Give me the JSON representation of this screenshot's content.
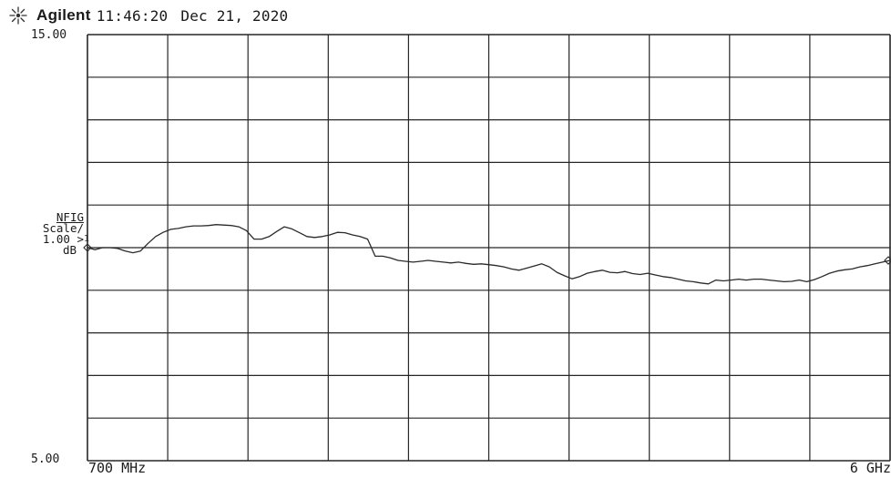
{
  "header": {
    "logo_icon": "sunburst-logo-icon",
    "brand": "Agilent",
    "time": "11:46:20",
    "date": "Dec 21, 2020"
  },
  "axis": {
    "y_top_label": "15.00",
    "y_bottom_label": "5.00",
    "trace_name": "NFIG",
    "scale_line1": "Scale/",
    "scale_value": "1.00",
    "scale_unit": "dB",
    "reference_marker": ">",
    "marker_label": "1",
    "x_start_label": "700 MHz",
    "x_end_label": "6 GHz"
  },
  "chart_data": {
    "type": "line",
    "title": "",
    "xlabel": "",
    "ylabel": "NFIG",
    "x_unit": "MHz",
    "y_unit": "dB",
    "xlim": [
      700,
      6000
    ],
    "ylim": [
      5,
      15
    ],
    "grid": true,
    "grid_divisions": {
      "x": 10,
      "y": 10
    },
    "color": "#2a2a2a",
    "series": [
      {
        "values": [
          [
            700,
            10.0
          ],
          [
            750,
            9.95
          ],
          [
            800,
            10.0
          ],
          [
            850,
            10.0
          ],
          [
            900,
            9.98
          ],
          [
            950,
            9.92
          ],
          [
            1000,
            9.88
          ],
          [
            1050,
            9.92
          ],
          [
            1100,
            10.1
          ],
          [
            1150,
            10.26
          ],
          [
            1200,
            10.36
          ],
          [
            1250,
            10.43
          ],
          [
            1300,
            10.45
          ],
          [
            1350,
            10.49
          ],
          [
            1400,
            10.51
          ],
          [
            1450,
            10.51
          ],
          [
            1500,
            10.52
          ],
          [
            1550,
            10.54
          ],
          [
            1600,
            10.53
          ],
          [
            1650,
            10.52
          ],
          [
            1700,
            10.49
          ],
          [
            1750,
            10.4
          ],
          [
            1800,
            10.2
          ],
          [
            1850,
            10.2
          ],
          [
            1900,
            10.26
          ],
          [
            1950,
            10.38
          ],
          [
            2000,
            10.49
          ],
          [
            2050,
            10.44
          ],
          [
            2100,
            10.35
          ],
          [
            2150,
            10.26
          ],
          [
            2200,
            10.24
          ],
          [
            2250,
            10.26
          ],
          [
            2300,
            10.3
          ],
          [
            2350,
            10.36
          ],
          [
            2400,
            10.35
          ],
          [
            2450,
            10.3
          ],
          [
            2500,
            10.26
          ],
          [
            2550,
            10.2
          ],
          [
            2600,
            9.8
          ],
          [
            2650,
            9.8
          ],
          [
            2700,
            9.76
          ],
          [
            2750,
            9.7
          ],
          [
            2800,
            9.68
          ],
          [
            2850,
            9.66
          ],
          [
            2900,
            9.68
          ],
          [
            2950,
            9.7
          ],
          [
            3000,
            9.68
          ],
          [
            3050,
            9.66
          ],
          [
            3100,
            9.64
          ],
          [
            3150,
            9.66
          ],
          [
            3200,
            9.63
          ],
          [
            3250,
            9.61
          ],
          [
            3300,
            9.62
          ],
          [
            3350,
            9.6
          ],
          [
            3400,
            9.58
          ],
          [
            3450,
            9.55
          ],
          [
            3500,
            9.5
          ],
          [
            3550,
            9.47
          ],
          [
            3600,
            9.52
          ],
          [
            3650,
            9.57
          ],
          [
            3700,
            9.62
          ],
          [
            3750,
            9.55
          ],
          [
            3800,
            9.42
          ],
          [
            3850,
            9.34
          ],
          [
            3900,
            9.27
          ],
          [
            3950,
            9.32
          ],
          [
            4000,
            9.4
          ],
          [
            4050,
            9.44
          ],
          [
            4100,
            9.47
          ],
          [
            4150,
            9.42
          ],
          [
            4200,
            9.41
          ],
          [
            4250,
            9.44
          ],
          [
            4300,
            9.39
          ],
          [
            4350,
            9.37
          ],
          [
            4400,
            9.4
          ],
          [
            4450,
            9.36
          ],
          [
            4500,
            9.32
          ],
          [
            4550,
            9.3
          ],
          [
            4600,
            9.26
          ],
          [
            4650,
            9.22
          ],
          [
            4700,
            9.2
          ],
          [
            4750,
            9.17
          ],
          [
            4800,
            9.15
          ],
          [
            4850,
            9.24
          ],
          [
            4900,
            9.22
          ],
          [
            4950,
            9.24
          ],
          [
            5000,
            9.26
          ],
          [
            5050,
            9.24
          ],
          [
            5100,
            9.26
          ],
          [
            5150,
            9.26
          ],
          [
            5200,
            9.24
          ],
          [
            5250,
            9.22
          ],
          [
            5300,
            9.2
          ],
          [
            5350,
            9.21
          ],
          [
            5400,
            9.24
          ],
          [
            5450,
            9.2
          ],
          [
            5500,
            9.25
          ],
          [
            5550,
            9.32
          ],
          [
            5600,
            9.4
          ],
          [
            5650,
            9.45
          ],
          [
            5700,
            9.48
          ],
          [
            5750,
            9.5
          ],
          [
            5800,
            9.55
          ],
          [
            5850,
            9.58
          ],
          [
            5900,
            9.62
          ],
          [
            5950,
            9.66
          ],
          [
            6000,
            9.7
          ]
        ]
      }
    ]
  }
}
